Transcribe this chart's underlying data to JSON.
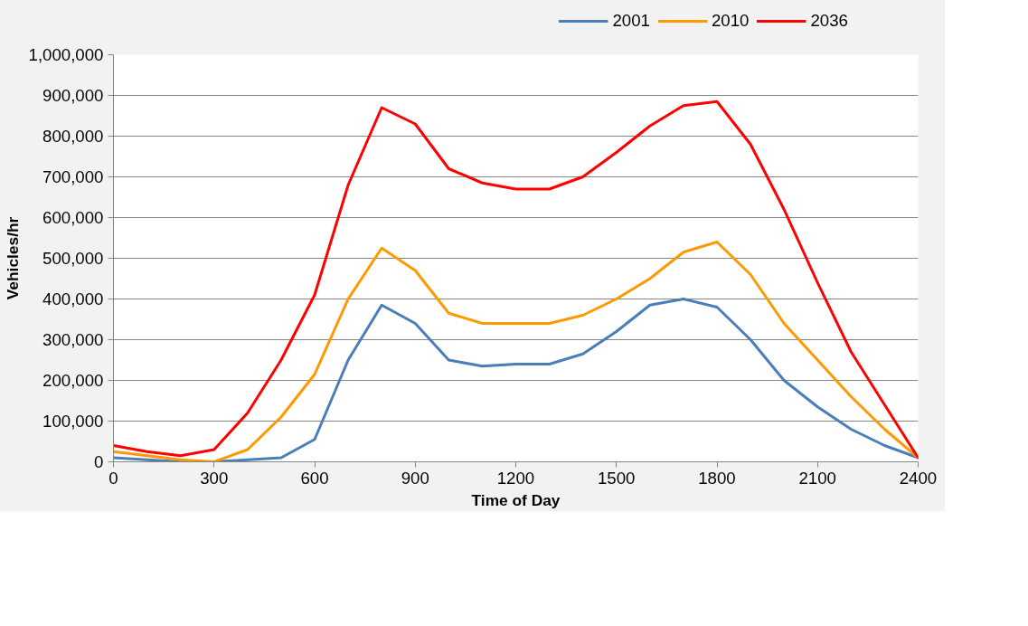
{
  "chart_data": {
    "type": "line",
    "xlabel": "Time of Day",
    "ylabel": "Vehicles/hr",
    "x": [
      0,
      100,
      200,
      300,
      400,
      500,
      600,
      700,
      800,
      900,
      1000,
      1100,
      1200,
      1300,
      1400,
      1500,
      1600,
      1700,
      1800,
      1900,
      2000,
      2100,
      2200,
      2300,
      2400
    ],
    "series": [
      {
        "name": "2001",
        "color": "#4a7ebb",
        "values": [
          10000,
          5000,
          0,
          0,
          5000,
          10000,
          55000,
          250000,
          385000,
          340000,
          250000,
          235000,
          240000,
          240000,
          265000,
          320000,
          385000,
          400000,
          380000,
          300000,
          200000,
          135000,
          80000,
          40000,
          10000
        ]
      },
      {
        "name": "2010",
        "color": "#ff9900",
        "values": [
          25000,
          15000,
          5000,
          0,
          30000,
          110000,
          215000,
          400000,
          525000,
          470000,
          365000,
          340000,
          340000,
          340000,
          360000,
          400000,
          450000,
          515000,
          540000,
          460000,
          340000,
          250000,
          160000,
          80000,
          10000
        ]
      },
      {
        "name": "2036",
        "color": "#ff0000",
        "values": [
          40000,
          25000,
          15000,
          30000,
          120000,
          250000,
          410000,
          680000,
          870000,
          830000,
          720000,
          685000,
          670000,
          670000,
          700000,
          760000,
          825000,
          875000,
          885000,
          780000,
          620000,
          440000,
          270000,
          140000,
          10000
        ]
      }
    ],
    "xlim": [
      0,
      2400
    ],
    "xticks": [
      0,
      300,
      600,
      900,
      1200,
      1500,
      1800,
      2100,
      2400
    ],
    "ylim": [
      0,
      1000000
    ],
    "yticks": [
      0,
      {
        "value": 100000,
        "label": "100,000"
      },
      {
        "value": 200000,
        "label": "200,000"
      },
      {
        "value": 300000,
        "label": "300,000"
      },
      {
        "value": 400000,
        "label": "400,000"
      },
      {
        "value": 500000,
        "label": "500,000"
      },
      {
        "value": 600000,
        "label": "600,000"
      },
      {
        "value": 700000,
        "label": "700,000"
      },
      {
        "value": 800000,
        "label": "800,000"
      },
      {
        "value": 900000,
        "label": "900,000"
      },
      {
        "value": 1000000,
        "label": "1,000,000"
      }
    ],
    "grid": "y",
    "legend": "top right",
    "marker": "none",
    "line_style": "solid"
  }
}
